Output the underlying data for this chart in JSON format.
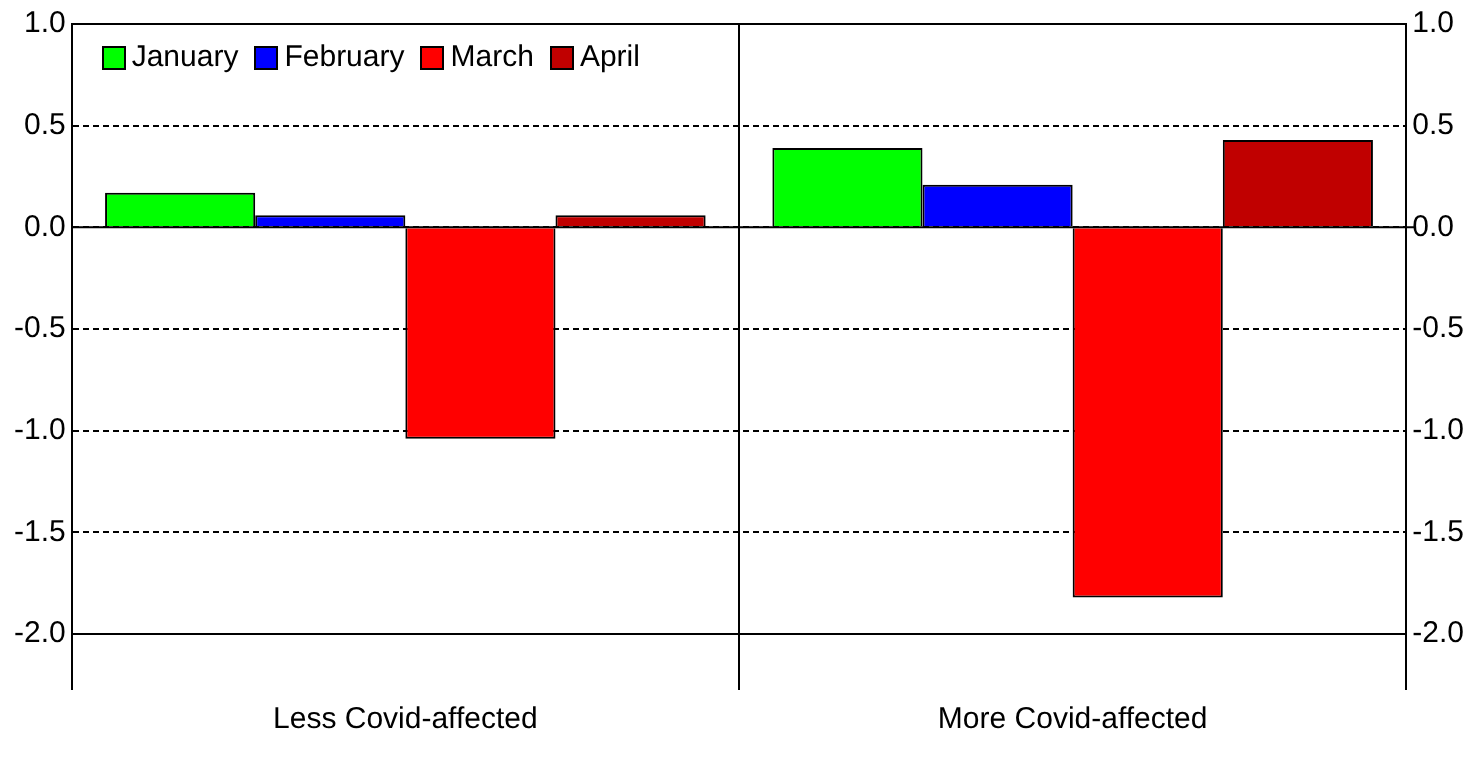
{
  "chart_data": {
    "type": "bar",
    "categories": [
      "Less Covid-affected",
      "More Covid-affected"
    ],
    "series": [
      {
        "name": "January",
        "color": "#00ff00",
        "values": [
          0.17,
          0.39
        ]
      },
      {
        "name": "February",
        "color": "#0000ff",
        "values": [
          0.06,
          0.21
        ]
      },
      {
        "name": "March",
        "color": "#ff0000",
        "values": [
          -1.04,
          -1.82
        ]
      },
      {
        "name": "April",
        "color": "#c00000",
        "values": [
          0.06,
          0.43
        ]
      }
    ],
    "ylim": [
      -2.0,
      1.0
    ],
    "yticks": [
      {
        "value": -2,
        "label": "-2.0"
      },
      {
        "value": -1.5,
        "label": "-1.5"
      },
      {
        "value": -1,
        "label": "-1.0"
      },
      {
        "value": -0.5,
        "label": "-0.5"
      },
      {
        "value": 0,
        "label": "0.0"
      },
      {
        "value": 0.5,
        "label": "0.5"
      },
      {
        "value": 1,
        "label": "1.0"
      }
    ],
    "y2lim": [
      -2.0,
      1.0
    ],
    "y2ticks": [
      {
        "value": -2,
        "label": "-2.0"
      },
      {
        "value": -1.5,
        "label": "-1.5"
      },
      {
        "value": -1,
        "label": "-1.0"
      },
      {
        "value": -0.5,
        "label": "-0.5"
      },
      {
        "value": 0,
        "label": "0.0"
      },
      {
        "value": 0.5,
        "label": "0.5"
      },
      {
        "value": 1,
        "label": "1.0"
      }
    ],
    "grid": "y",
    "legend": "top left"
  }
}
